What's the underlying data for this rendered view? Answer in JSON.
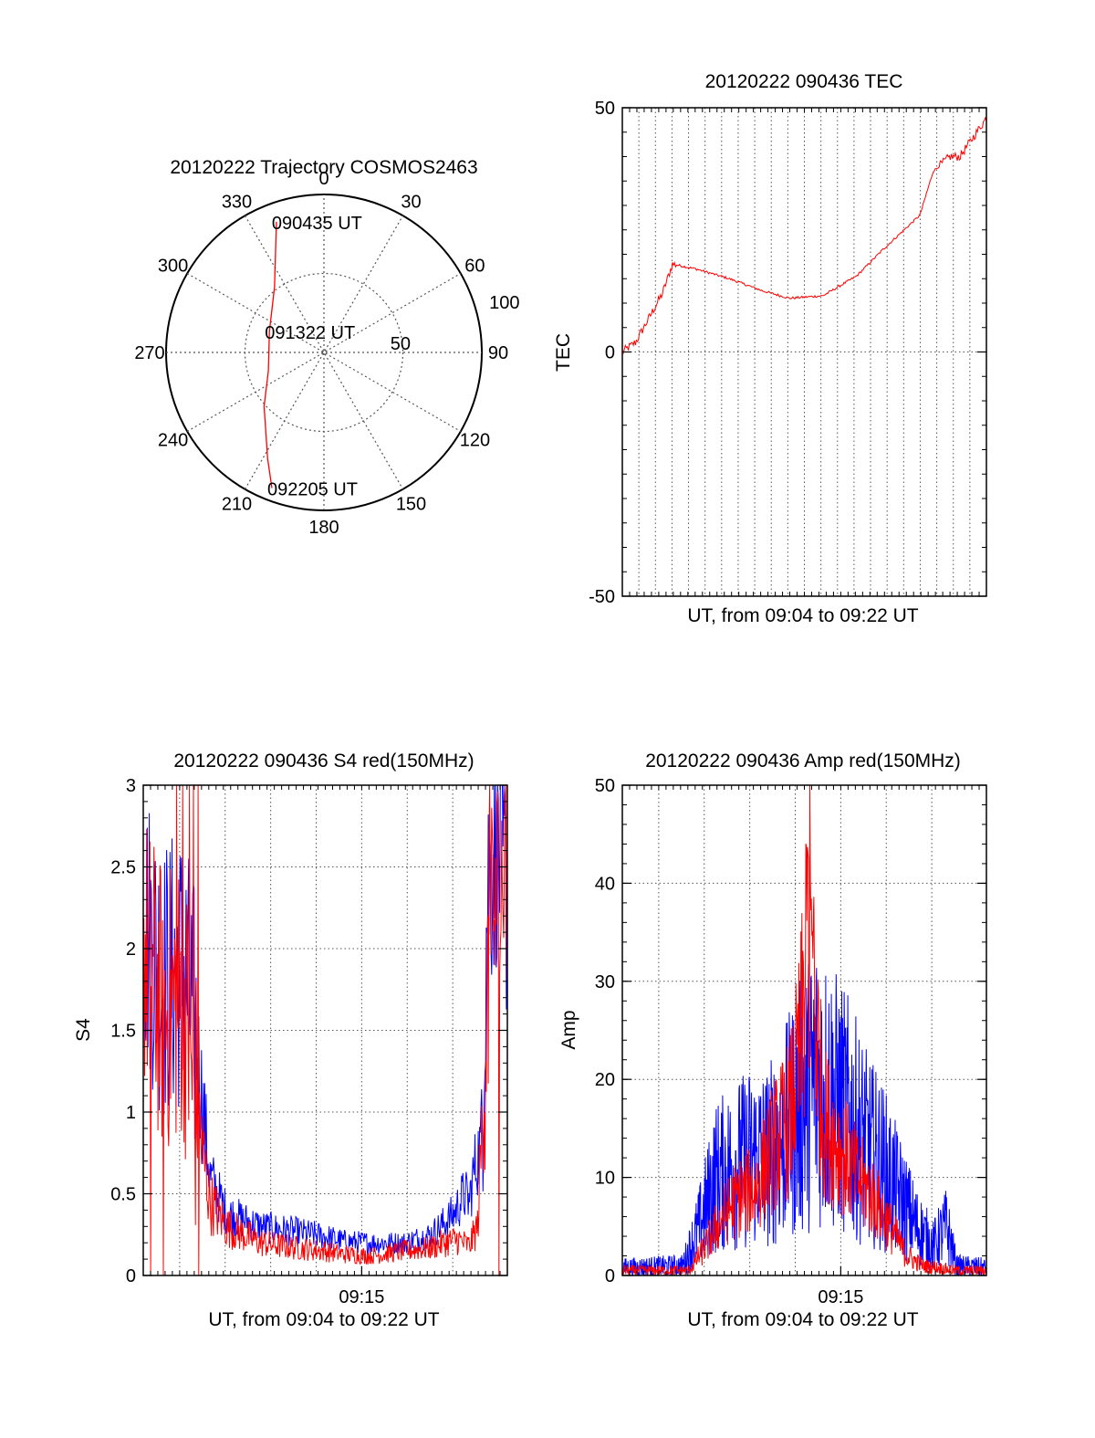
{
  "colors": {
    "red": "#ff0000",
    "blue": "#0000ff",
    "axis": "#000000",
    "grid": "#555555",
    "background": "#ffffff"
  },
  "chart_data": [
    {
      "id": "trajectory",
      "type": "polar",
      "title": "20120222 Trajectory COSMOS2463",
      "azimuth_labels": [
        "0",
        "30",
        "60",
        "90",
        "120",
        "150",
        "180",
        "210",
        "240",
        "270",
        "300",
        "330"
      ],
      "radial_ticks": [
        {
          "value": 50,
          "label": "50"
        },
        {
          "value": 100,
          "label": "100"
        }
      ],
      "radial_range": [
        0,
        100
      ],
      "grid": true,
      "series": [
        {
          "color": "#ff0000",
          "points": [
            [
              -20,
              88
            ],
            [
              -37,
              52
            ],
            [
              -69,
              37
            ],
            [
              -108,
              37
            ],
            [
              -132,
              51
            ],
            [
              -152,
              76
            ],
            [
              -159,
              92
            ]
          ]
        }
      ],
      "annotations": [
        {
          "text": "090435 UT",
          "az": -20,
          "dist": 88
        },
        {
          "text": "091322 UT",
          "az": -69,
          "dist": 37
        },
        {
          "text": "092205 UT",
          "az": -159,
          "dist": 92
        }
      ]
    },
    {
      "id": "tec",
      "type": "line",
      "title": "20120222 090436 TEC",
      "xlabel": "UT, from 09:04 to 09:22 UT",
      "ylabel": "TEC",
      "xlim": [
        0,
        1089
      ],
      "ylim": [
        -50,
        50
      ],
      "yticks": [
        "-50",
        "0",
        "50"
      ],
      "xgrid_count": 21,
      "grid": true,
      "series": [
        {
          "color": "#ff0000",
          "x": [
            0,
            40,
            80,
            120,
            150,
            220,
            320,
            420,
            500,
            600,
            700,
            780,
            890,
            930,
            980,
            1010,
            1040,
            1080,
            1089
          ],
          "y": [
            0,
            2,
            7,
            12,
            18,
            17,
            15,
            12.5,
            11,
            11.5,
            15.5,
            21,
            28,
            37,
            40,
            40,
            43,
            47,
            48
          ]
        }
      ]
    },
    {
      "id": "s4",
      "type": "line",
      "title": "20120222 090436 S4 red(150MHz)",
      "xlabel": "UT, from 09:04 to 09:22 UT",
      "ylabel": "S4",
      "xtick_labels": [
        "09:15"
      ],
      "xlim": [
        0,
        1089
      ],
      "ylim": [
        0,
        3
      ],
      "yticks": [
        "0",
        "0.5",
        "1",
        "1.5",
        "2",
        "2.5",
        "3"
      ],
      "grid": true,
      "series": [
        {
          "color": "#0000ff",
          "x": [
            0,
            60,
            120,
            155,
            200,
            250,
            350,
            450,
            540,
            600,
            680,
            780,
            860,
            900,
            930,
            960,
            975,
            990,
            1010,
            1030,
            1060,
            1089
          ],
          "y": [
            2.2,
            1.8,
            1.9,
            1.5,
            0.6,
            0.38,
            0.3,
            0.27,
            0.24,
            0.21,
            0.2,
            0.2,
            0.25,
            0.32,
            0.38,
            0.5,
            0.45,
            0.65,
            0.8,
            2.4,
            2.7,
            2.3
          ]
        },
        {
          "color": "#ff0000",
          "x": [
            0,
            60,
            120,
            160,
            200,
            250,
            350,
            450,
            540,
            600,
            680,
            780,
            860,
            900,
            940,
            975,
            1000,
            1020,
            1040,
            1089
          ],
          "y": [
            2.0,
            1.6,
            1.7,
            1.0,
            0.45,
            0.3,
            0.2,
            0.17,
            0.15,
            0.13,
            0.12,
            0.15,
            0.17,
            0.2,
            0.22,
            0.18,
            0.3,
            1.2,
            2.2,
            2.5
          ]
        }
      ]
    },
    {
      "id": "amp",
      "type": "line",
      "title": "20120222 090436 Amp red(150MHz)",
      "xlabel": "UT, from 09:04 to 09:22 UT",
      "ylabel": "Amp",
      "xtick_labels": [
        "09:15"
      ],
      "xlim": [
        0,
        1089
      ],
      "ylim": [
        0,
        50
      ],
      "yticks": [
        "0",
        "10",
        "20",
        "30",
        "40",
        "50"
      ],
      "grid": true,
      "series": [
        {
          "color": "#ff0000",
          "x": [
            0,
            200,
            250,
            300,
            350,
            400,
            450,
            500,
            530,
            560,
            600,
            650,
            700,
            750,
            800,
            850,
            900,
            1000,
            1089
          ],
          "y": [
            0.5,
            0.5,
            3,
            6,
            8,
            9,
            13,
            16,
            22,
            35,
            16,
            13,
            10,
            8,
            5,
            2,
            1,
            0.5,
            0.5
          ]
        },
        {
          "color": "#0000ff",
          "x": [
            0,
            180,
            230,
            280,
            330,
            380,
            430,
            480,
            530,
            580,
            630,
            680,
            730,
            780,
            830,
            880,
            930,
            970,
            1000,
            1089
          ],
          "y": [
            0.8,
            1,
            5,
            10,
            11,
            12,
            12,
            14,
            17,
            20,
            18,
            16,
            13,
            11,
            8,
            5,
            3,
            5,
            1,
            0.8
          ]
        }
      ]
    }
  ]
}
